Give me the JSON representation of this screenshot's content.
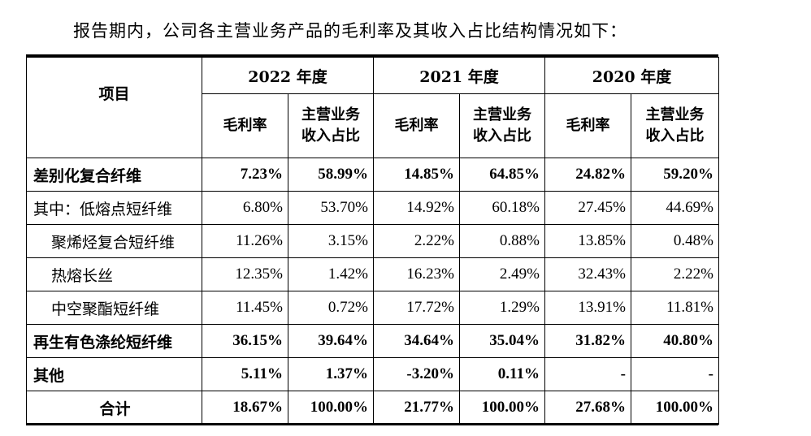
{
  "intro": "报告期内，公司各主营业务产品的毛利率及其收入占比结构情况如下：",
  "table": {
    "item_header": "项目",
    "years": [
      "2022 年度",
      "2021 年度",
      "2020 年度"
    ],
    "sub_headers": {
      "margin": "毛利率",
      "share": "主营业务收入占比"
    },
    "rows": [
      {
        "label": "差别化复合纤维",
        "bold": true,
        "indent": 0,
        "values": [
          "7.23%",
          "58.99%",
          "14.85%",
          "64.85%",
          "24.82%",
          "59.20%"
        ]
      },
      {
        "label": "其中：低熔点短纤维",
        "bold": false,
        "indent": 1,
        "values": [
          "6.80%",
          "53.70%",
          "14.92%",
          "60.18%",
          "27.45%",
          "44.69%"
        ]
      },
      {
        "label": "聚烯烃复合短纤维",
        "bold": false,
        "indent": 2,
        "values": [
          "11.26%",
          "3.15%",
          "2.22%",
          "0.88%",
          "13.85%",
          "0.48%"
        ]
      },
      {
        "label": "热熔长丝",
        "bold": false,
        "indent": 2,
        "values": [
          "12.35%",
          "1.42%",
          "16.23%",
          "2.49%",
          "32.43%",
          "2.22%"
        ]
      },
      {
        "label": "中空聚酯短纤维",
        "bold": false,
        "indent": 2,
        "values": [
          "11.45%",
          "0.72%",
          "17.72%",
          "1.29%",
          "13.91%",
          "11.81%"
        ]
      },
      {
        "label": "再生有色涤纶短纤维",
        "bold": true,
        "indent": 0,
        "values": [
          "36.15%",
          "39.64%",
          "34.64%",
          "35.04%",
          "31.82%",
          "40.80%"
        ]
      },
      {
        "label": "其他",
        "bold": true,
        "indent": 0,
        "values": [
          "5.11%",
          "1.37%",
          "-3.20%",
          "0.11%",
          "-",
          "-"
        ]
      },
      {
        "label": "合计",
        "bold": true,
        "indent": 0,
        "center": true,
        "values": [
          "18.67%",
          "100.00%",
          "21.77%",
          "100.00%",
          "27.68%",
          "100.00%"
        ]
      }
    ]
  }
}
